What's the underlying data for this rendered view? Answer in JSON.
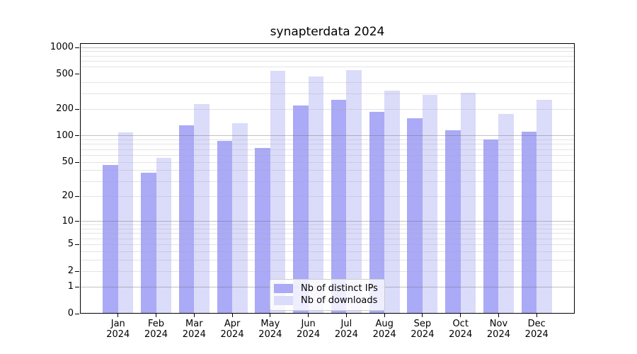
{
  "figure": {
    "title": "synapterdata 2024",
    "background": "#ffffff"
  },
  "chart_data": {
    "type": "bar",
    "title": "synapterdata 2024",
    "categories": [
      "Jan",
      "Feb",
      "Mar",
      "Apr",
      "May",
      "Jun",
      "Jul",
      "Aug",
      "Sep",
      "Oct",
      "Nov",
      "Dec"
    ],
    "year_label": "2024",
    "series": [
      {
        "name": "Nb of distinct IPs",
        "color": "#aaaaf7",
        "values": [
          46,
          38,
          132,
          88,
          73,
          220,
          258,
          186,
          159,
          115,
          91,
          111
        ]
      },
      {
        "name": "Nb of downloads",
        "color": "#dbdbfa",
        "values": [
          110,
          56,
          228,
          140,
          548,
          470,
          554,
          328,
          290,
          308,
          178,
          255
        ]
      }
    ],
    "yscale": "log10(1+v)",
    "ylim": [
      0,
      1120
    ],
    "yticks": [
      0,
      1,
      2,
      5,
      10,
      20,
      50,
      100,
      200,
      500,
      1000
    ],
    "major_gridlines": [
      1,
      10,
      100,
      1000
    ],
    "minor_gridlines": [
      2,
      3,
      4,
      5,
      6,
      7,
      8,
      9,
      20,
      30,
      40,
      50,
      60,
      70,
      80,
      90,
      200,
      300,
      400,
      600,
      700,
      800,
      900
    ],
    "grid": true,
    "legend": {
      "position": "lower-center",
      "items": [
        "Nb of distinct IPs",
        "Nb of downloads"
      ]
    },
    "colors": {
      "axis": "#000000",
      "tick_label": "#000000",
      "major_grid": "rgba(110,110,110,0.42)",
      "minor_grid": "rgba(165,165,165,0.30)",
      "legend_border": "#cccccc"
    }
  }
}
